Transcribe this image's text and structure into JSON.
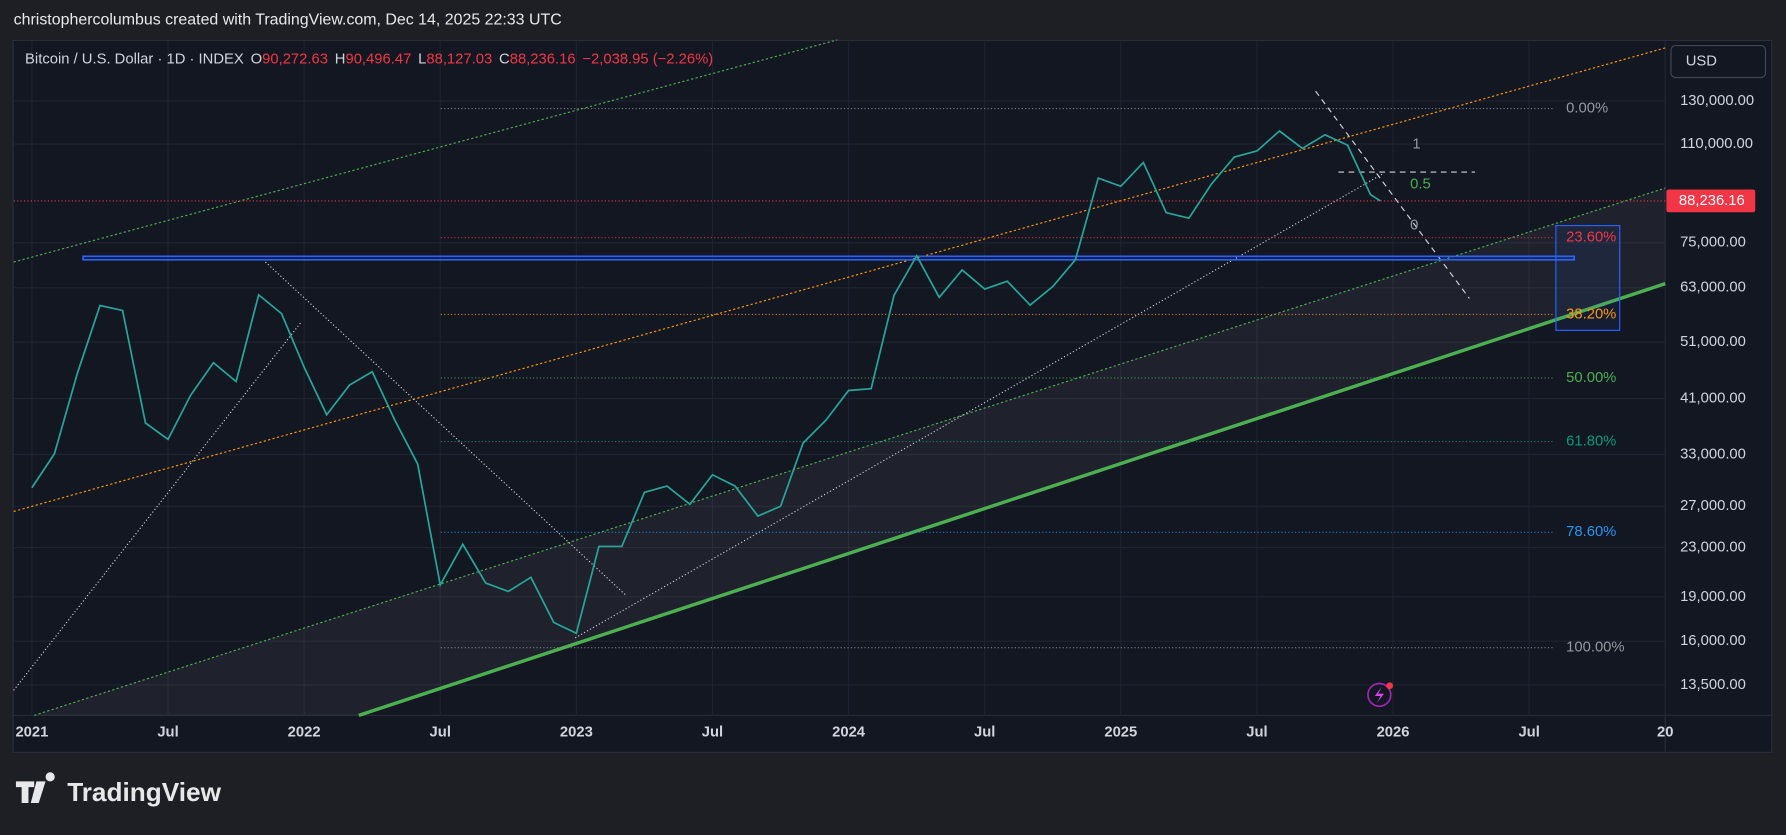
{
  "header": "christophercolumbus created with TradingView.com, Dec 14, 2025 22:33 UTC",
  "brand": "TradingView",
  "currency": "USD",
  "chart_data": {
    "type": "line",
    "symbol": "Bitcoin / U.S. Dollar · 1D · INDEX",
    "ohlc": [
      {
        "label": "O",
        "value": "90,272.63"
      },
      {
        "label": "H",
        "value": "90,496.47"
      },
      {
        "label": "L",
        "value": "88,127.03"
      },
      {
        "label": "C",
        "value": "88,236.16"
      }
    ],
    "change": "−2,038.95 (−2.26%)",
    "log_scale": true,
    "grid": true,
    "xlim": [
      2020.933,
      2027.0
    ],
    "ylim": [
      12000,
      164000
    ],
    "xticks": [
      2021,
      {
        "value": 2021.5,
        "label": "Jul"
      },
      2022,
      {
        "value": 2022.5,
        "label": "Jul"
      },
      2023,
      {
        "value": 2023.5,
        "label": "Jul"
      },
      2024,
      {
        "value": 2024.5,
        "label": "Jul"
      },
      2025,
      {
        "value": 2025.5,
        "label": "Jul"
      },
      2026,
      {
        "value": 2026.5,
        "label": "Jul"
      },
      {
        "value": 2027,
        "label": "20"
      }
    ],
    "yticks": [
      {
        "value": 130000,
        "label": "130,000.00"
      },
      {
        "value": 110000,
        "label": "110,000.00"
      },
      {
        "value": 75000,
        "label": "75,000.00"
      },
      {
        "value": 63000,
        "label": "63,000.00"
      },
      {
        "value": 51000,
        "label": "51,000.00"
      },
      {
        "value": 41000,
        "label": "41,000.00"
      },
      {
        "value": 33000,
        "label": "33,000.00"
      },
      {
        "value": 27000,
        "label": "27,000.00"
      },
      {
        "value": 23000,
        "label": "23,000.00"
      },
      {
        "value": 19000,
        "label": "19,000.00"
      },
      {
        "value": 16000,
        "label": "16,000.00"
      },
      {
        "value": 13500,
        "label": "13,500.00"
      }
    ],
    "last_price": {
      "value": 88236.16,
      "label": "88,236.16"
    },
    "series": [
      {
        "name": "Bitcoin / U.S. Dollar",
        "color": "#26a69a",
        "x": [
          2021.0,
          2021.083,
          2021.167,
          2021.25,
          2021.333,
          2021.417,
          2021.5,
          2021.583,
          2021.667,
          2021.75,
          2021.833,
          2021.917,
          2022.0,
          2022.083,
          2022.167,
          2022.25,
          2022.333,
          2022.417,
          2022.5,
          2022.583,
          2022.667,
          2022.75,
          2022.833,
          2022.917,
          2023.0,
          2023.083,
          2023.167,
          2023.25,
          2023.333,
          2023.417,
          2023.5,
          2023.583,
          2023.667,
          2023.75,
          2023.833,
          2023.917,
          2024.0,
          2024.083,
          2024.167,
          2024.25,
          2024.333,
          2024.417,
          2024.5,
          2024.583,
          2024.667,
          2024.75,
          2024.833,
          2024.917,
          2025.0,
          2025.083,
          2025.167,
          2025.25,
          2025.333,
          2025.417,
          2025.5,
          2025.583,
          2025.667,
          2025.75,
          2025.833,
          2025.917,
          2025.953
        ],
        "values": [
          29000,
          33100,
          45200,
          58800,
          57700,
          37300,
          35000,
          41500,
          47100,
          43800,
          61300,
          57000,
          46300,
          38500,
          43200,
          45500,
          37700,
          31800,
          19900,
          23300,
          20050,
          19400,
          20500,
          17200,
          16500,
          23100,
          23100,
          28500,
          29200,
          27200,
          30500,
          29200,
          26000,
          27000,
          34500,
          37700,
          42300,
          42600,
          61200,
          71300,
          60700,
          67500,
          62700,
          64600,
          58900,
          63300,
          70200,
          96400,
          93400,
          102400,
          84300,
          82500,
          94200,
          104600,
          107100,
          115700,
          108200,
          114000,
          109500,
          90400,
          88236.16
        ]
      }
    ],
    "fib_levels": [
      {
        "label": "0.00%",
        "value": 126200,
        "color": "#9598a1"
      },
      {
        "label": "23.60%",
        "value": 76500,
        "color": "#f23645"
      },
      {
        "label": "38.20%",
        "value": 56800,
        "color": "#ff9800"
      },
      {
        "label": "50.00%",
        "value": 44400,
        "color": "#4caf50"
      },
      {
        "label": "61.80%",
        "value": 34700,
        "color": "#089981"
      },
      {
        "label": "78.60%",
        "value": 24400,
        "color": "#2196f3"
      },
      {
        "label": "100.00%",
        "value": 15600,
        "color": "#9598a1"
      }
    ],
    "annotations": [
      "1",
      "0.5",
      "0"
    ]
  }
}
